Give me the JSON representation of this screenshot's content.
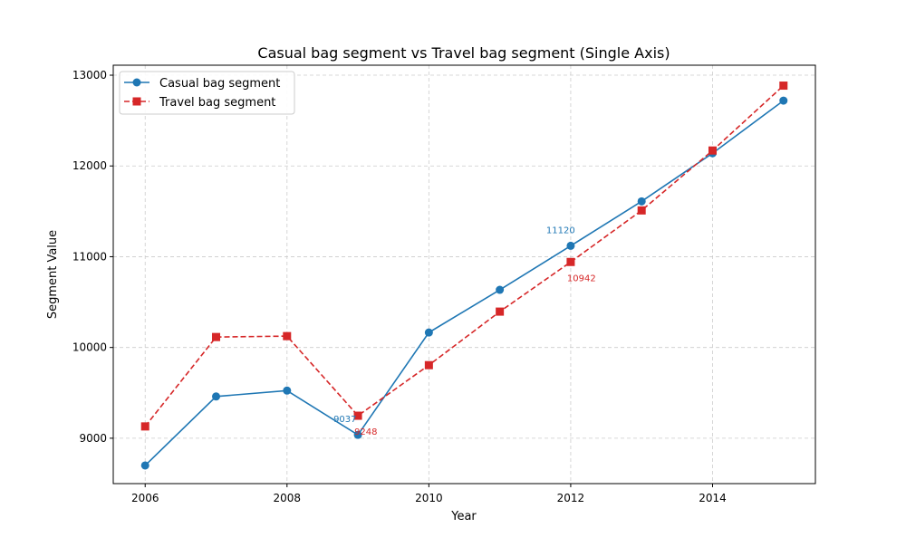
{
  "chart_data": {
    "type": "line",
    "title": "Casual bag segment vs Travel bag segment (Single Axis)",
    "xlabel": "Year",
    "ylabel": "Segment Value",
    "xlim": [
      2005.55,
      2015.45
    ],
    "ylim": [
      8500,
      13110
    ],
    "x_ticks": [
      2006,
      2008,
      2010,
      2012,
      2014
    ],
    "y_ticks": [
      9000,
      10000,
      11000,
      12000,
      13000
    ],
    "grid": true,
    "legend_position": "top-left",
    "x": [
      2006,
      2007,
      2008,
      2009,
      2010,
      2011,
      2012,
      2013,
      2014,
      2015
    ],
    "series": [
      {
        "name": "Casual bag segment",
        "color": "#1f77b4",
        "line_style": "solid",
        "marker": "circle",
        "values": [
          8700,
          9460,
          9525,
          9037,
          10165,
          10635,
          11120,
          11610,
          12140,
          12720
        ]
      },
      {
        "name": "Travel bag segment",
        "color": "#d62728",
        "line_style": "dashed",
        "marker": "square",
        "values": [
          9130,
          10115,
          10125,
          9248,
          9805,
          10395,
          10942,
          11510,
          12170,
          12885
        ]
      }
    ],
    "annotations": [
      {
        "series": 0,
        "x": 2009,
        "text": "9037",
        "position": "above-left"
      },
      {
        "series": 1,
        "x": 2009,
        "text": "9248",
        "position": "below-right"
      },
      {
        "series": 0,
        "x": 2012,
        "text": "11120",
        "position": "above-left"
      },
      {
        "series": 1,
        "x": 2012,
        "text": "10942",
        "position": "below-right"
      }
    ]
  }
}
